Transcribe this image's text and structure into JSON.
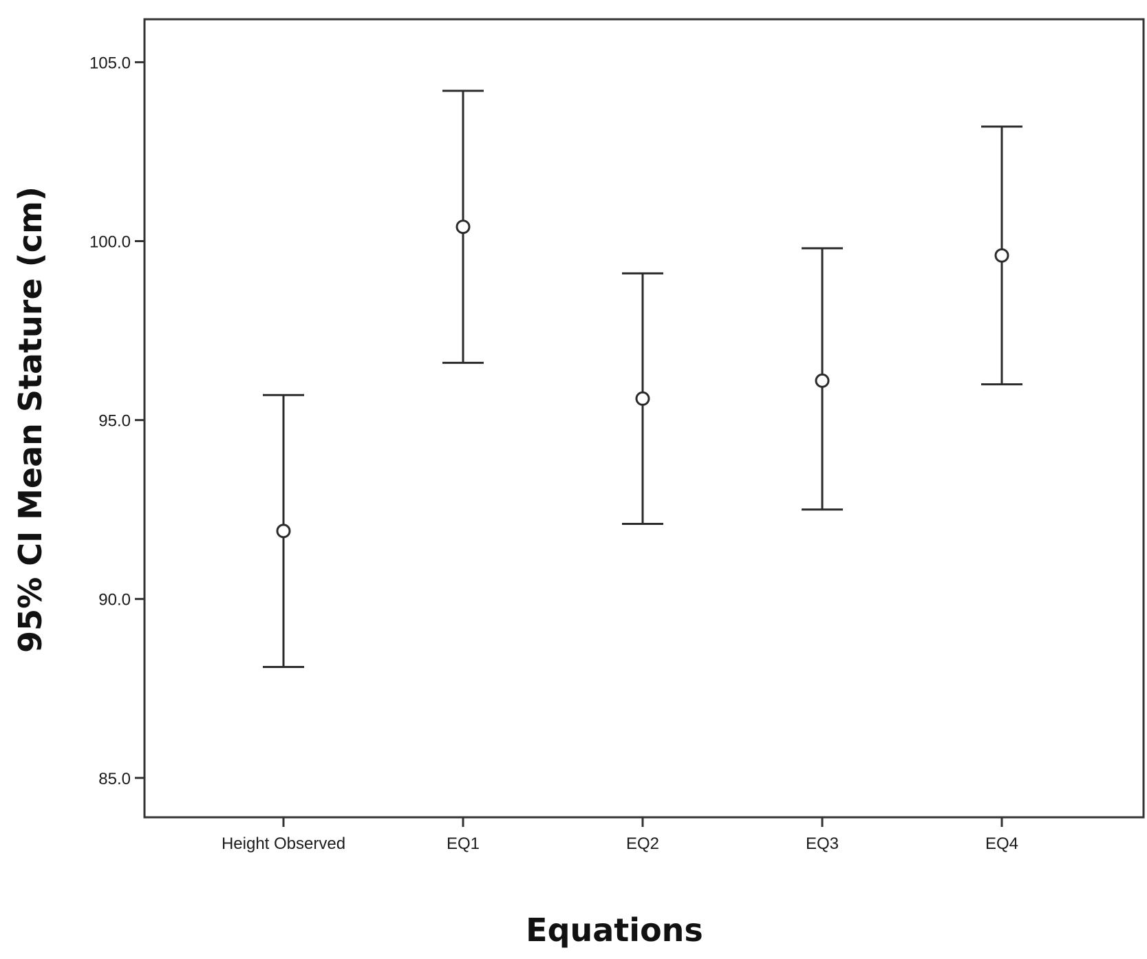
{
  "chart_data": {
    "type": "errorbar",
    "title": "",
    "xlabel": "Equations",
    "ylabel": "95% CI Mean Stature (cm)",
    "ylim": [
      83.9,
      106.2
    ],
    "yticks": [
      85.0,
      90.0,
      95.0,
      100.0,
      105.0
    ],
    "ytick_labels": [
      "85.0",
      "90.0",
      "95.0",
      "100.0",
      "105.0"
    ],
    "grid": false,
    "categories": [
      "Height Observed",
      "EQ1",
      "EQ2",
      "EQ3",
      "EQ4"
    ],
    "series": [
      {
        "mean": [
          91.9,
          100.4,
          95.6,
          96.1,
          99.6
        ],
        "lower": [
          88.1,
          96.6,
          92.1,
          92.5,
          96.0
        ],
        "upper": [
          95.7,
          104.2,
          99.1,
          99.8,
          103.2
        ]
      }
    ],
    "colors": {
      "line": "#2b2b2b",
      "axis": "#333333",
      "background": "#ffffff"
    }
  }
}
